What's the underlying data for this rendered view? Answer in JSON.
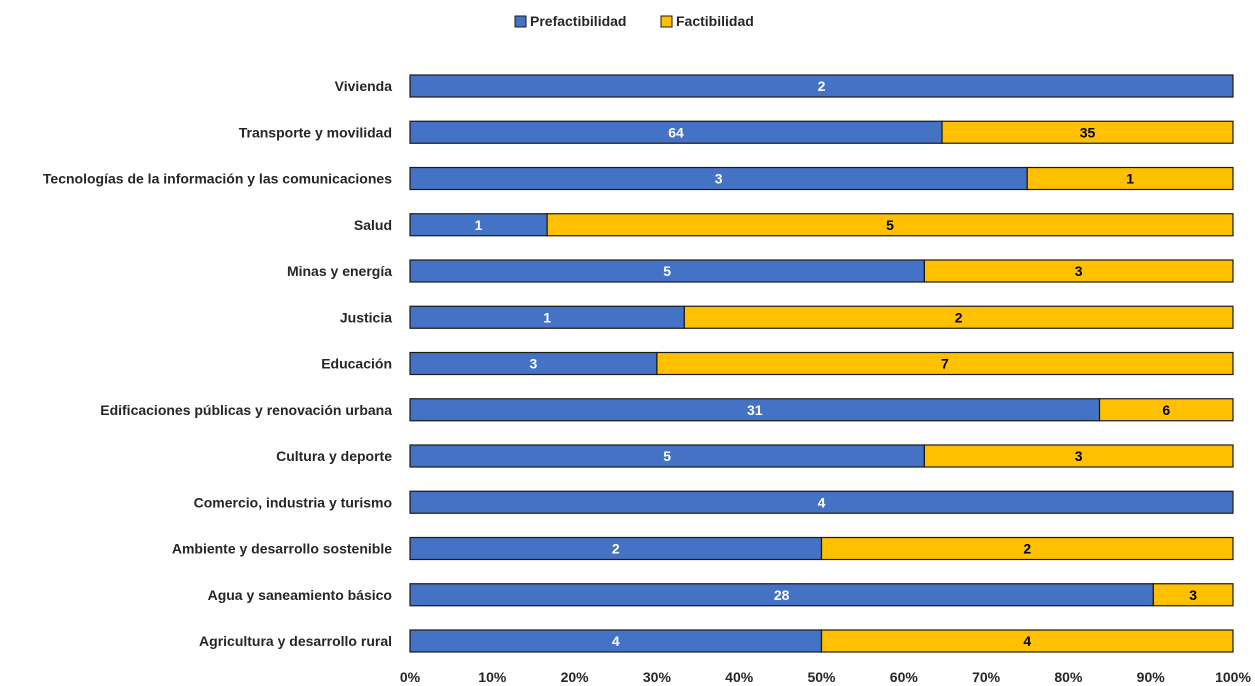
{
  "colors": {
    "prefactibilidad": "#4472C4",
    "factibilidad": "#FFC000",
    "bar_outline": "#1a1a1a",
    "label_on_blue": "#ffffff",
    "label_on_yellow": "#000000"
  },
  "chart_data": {
    "type": "bar",
    "orientation": "horizontal",
    "stacked": "percent",
    "title": "",
    "xlabel": "",
    "ylabel": "",
    "xlim": [
      0,
      100
    ],
    "x_ticks": [
      "0%",
      "10%",
      "20%",
      "30%",
      "40%",
      "50%",
      "60%",
      "70%",
      "80%",
      "90%",
      "100%"
    ],
    "grid": false,
    "legend": {
      "position": "top",
      "entries": [
        "Prefactibilidad",
        "Factibilidad"
      ]
    },
    "categories": [
      "Vivienda",
      "Transporte y movilidad",
      "Tecnologías de la información y las comunicaciones",
      "Salud",
      "Minas y energía",
      "Justicia",
      "Educación",
      "Edificaciones públicas y renovación urbana",
      "Cultura y deporte",
      "Comercio, industria y turismo",
      "Ambiente y desarrollo sostenible",
      "Agua y saneamiento básico",
      "Agricultura y desarrollo rural"
    ],
    "series": [
      {
        "name": "Prefactibilidad",
        "values": [
          2,
          64,
          3,
          1,
          5,
          1,
          3,
          31,
          5,
          4,
          2,
          28,
          4
        ]
      },
      {
        "name": "Factibilidad",
        "values": [
          0,
          35,
          1,
          5,
          3,
          2,
          7,
          6,
          3,
          0,
          2,
          3,
          4
        ]
      }
    ]
  }
}
